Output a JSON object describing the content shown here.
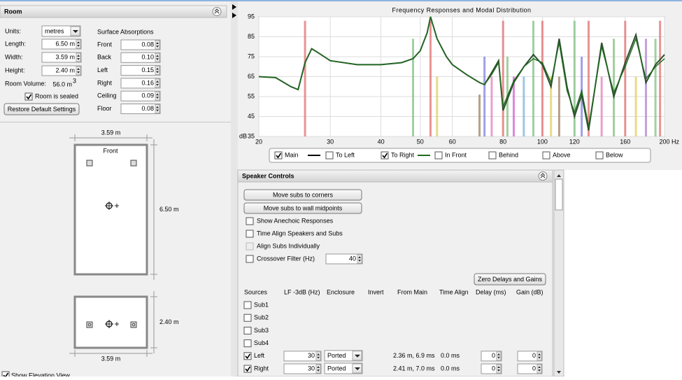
{
  "room": {
    "title": "Room",
    "units_label": "Units:",
    "units": "metres",
    "length_label": "Length:",
    "length": "6.50 m",
    "width_label": "Width:",
    "width": "3.59 m",
    "height_label": "Height:",
    "height": "2.40 m",
    "volume_label": "Room Volume:",
    "volume": "56.0 m",
    "volume_exponent": "3",
    "sealed_label": "Room is sealed",
    "sealed": true,
    "restore_button": "Restore Default Settings",
    "absorptions_title": "Surface Absorptions",
    "absorptions": [
      {
        "label": "Front",
        "value": "0.08"
      },
      {
        "label": "Back",
        "value": "0.10"
      },
      {
        "label": "Left",
        "value": "0.15"
      },
      {
        "label": "Right",
        "value": "0.16"
      },
      {
        "label": "Ceiling",
        "value": "0.09"
      },
      {
        "label": "Floor",
        "value": "0.08"
      }
    ],
    "plan": {
      "width": "3.59 m",
      "length": "6.50 m",
      "front_label": "Front"
    },
    "elevation": {
      "height": "2.40 m",
      "width": "3.59 m",
      "checkbox": "Show Elevation View",
      "checked": true
    }
  },
  "response": {
    "type": "line",
    "title": "Frequency Responses and Modal Distribution",
    "y_unit": "dB",
    "x_unit": "Hz",
    "xscale": "log",
    "ylim": [
      35,
      95
    ],
    "yticks": [
      35,
      45,
      55,
      65,
      75,
      85,
      95
    ],
    "xlim": [
      20,
      200
    ],
    "xticks": [
      20,
      30,
      40,
      50,
      60,
      80,
      100,
      120,
      160,
      200
    ],
    "grid": true,
    "x": [
      20,
      22,
      24,
      25,
      26,
      27,
      28,
      30,
      35,
      40,
      45,
      48,
      50,
      52,
      53,
      55,
      58,
      60,
      65,
      70,
      72,
      75,
      78,
      80,
      85,
      90,
      95,
      100,
      105,
      110,
      115,
      120,
      125,
      130,
      140,
      150,
      160,
      170,
      180,
      190,
      200
    ],
    "series": [
      {
        "name": "Main",
        "checked": true,
        "color": "#2f4f2f",
        "values": [
          65,
          64.5,
          60,
          58.5,
          72,
          79,
          77,
          73,
          71,
          71,
          72,
          74,
          78,
          87,
          95,
          84,
          75,
          71,
          66,
          62,
          61,
          67,
          73,
          48,
          62,
          70,
          76,
          71,
          60,
          84,
          60,
          45,
          56,
          38,
          82,
          55,
          72,
          86,
          62,
          71,
          76
        ]
      },
      {
        "name": "To Left",
        "checked": false,
        "color": "#3a66b0"
      },
      {
        "name": "To Right",
        "checked": true,
        "color": "#1f6b1f",
        "values": [
          65,
          64.5,
          60,
          58.5,
          72,
          79,
          77,
          73,
          71,
          71,
          72,
          74,
          78,
          87,
          95,
          84,
          75,
          71,
          66,
          62,
          61,
          66,
          72,
          50,
          63,
          70,
          74,
          72,
          62,
          82,
          58,
          47,
          58,
          40,
          80,
          57,
          70,
          84,
          64,
          70,
          74
        ]
      },
      {
        "name": "In Front",
        "checked": false,
        "color": "#203a80"
      },
      {
        "name": "Behind",
        "checked": false,
        "color": "#800080"
      },
      {
        "name": "Above",
        "checked": false,
        "color": "#e080e0"
      },
      {
        "name": "Below",
        "checked": false,
        "color": "#999999"
      }
    ],
    "modes": [
      {
        "x": 26,
        "top": 93,
        "color": "#e07070"
      },
      {
        "x": 48,
        "top": 84,
        "color": "#80c080"
      },
      {
        "x": 53,
        "top": 93,
        "color": "#e07070"
      },
      {
        "x": 55,
        "top": 65,
        "color": "#e0d060"
      },
      {
        "x": 70,
        "top": 56,
        "color": "#a08060"
      },
      {
        "x": 72,
        "top": 75,
        "color": "#8080e0"
      },
      {
        "x": 75,
        "top": 65,
        "color": "#e080c0"
      },
      {
        "x": 80,
        "top": 93,
        "color": "#e07070"
      },
      {
        "x": 82,
        "top": 75,
        "color": "#80c080"
      },
      {
        "x": 85,
        "top": 65,
        "color": "#d060d0"
      },
      {
        "x": 90,
        "top": 65,
        "color": "#80b0e0"
      },
      {
        "x": 95,
        "top": 93,
        "color": "#80c080"
      },
      {
        "x": 100,
        "top": 93,
        "color": "#e07070"
      },
      {
        "x": 105,
        "top": 65,
        "color": "#e0d060"
      },
      {
        "x": 110,
        "top": 65,
        "color": "#a08060"
      },
      {
        "x": 120,
        "top": 93,
        "color": "#80c080"
      },
      {
        "x": 125,
        "top": 75,
        "color": "#8080e0"
      },
      {
        "x": 130,
        "top": 93,
        "color": "#e07070"
      },
      {
        "x": 140,
        "top": 65,
        "color": "#e080c0"
      },
      {
        "x": 150,
        "top": 84,
        "color": "#80c080"
      },
      {
        "x": 160,
        "top": 93,
        "color": "#e07070"
      },
      {
        "x": 170,
        "top": 65,
        "color": "#e0d060"
      },
      {
        "x": 180,
        "top": 84,
        "color": "#b080d0"
      },
      {
        "x": 190,
        "top": 84,
        "color": "#80c080"
      },
      {
        "x": 195,
        "top": 93,
        "color": "#e07070"
      }
    ]
  },
  "speaker_controls": {
    "title": "Speaker Controls",
    "buttons": [
      "Move subs to corners",
      "Move subs to wall midpoints"
    ],
    "options": [
      {
        "label": "Show Anechoic Responses",
        "checked": false,
        "disabled": false
      },
      {
        "label": "Time Align Speakers and Subs",
        "checked": false,
        "disabled": false
      },
      {
        "label": "Align Subs Individually",
        "checked": false,
        "disabled": true
      }
    ],
    "crossover": {
      "label": "Crossover Filter (Hz)",
      "checked": false,
      "value": "40"
    },
    "zero_button": "Zero Delays and Gains",
    "columns": [
      "Sources",
      "LF -3dB (Hz)",
      "Enclosure",
      "Invert",
      "From Main",
      "Time Align",
      "Delay (ms)",
      "Gain (dB)"
    ],
    "sources": [
      {
        "name": "Sub1",
        "checked": false
      },
      {
        "name": "Sub2",
        "checked": false
      },
      {
        "name": "Sub3",
        "checked": false
      },
      {
        "name": "Sub4",
        "checked": false
      },
      {
        "name": "Left",
        "checked": true,
        "lf": "30",
        "enclosure": "Ported",
        "from_main": "2.36 m, 6.9 ms",
        "time_align": "0.0 ms",
        "delay": "0",
        "gain": "0"
      },
      {
        "name": "Right",
        "checked": true,
        "lf": "30",
        "enclosure": "Ported",
        "from_main": "2.41 m, 7.0 ms",
        "time_align": "0.0 ms",
        "delay": "0",
        "gain": "0"
      }
    ]
  }
}
